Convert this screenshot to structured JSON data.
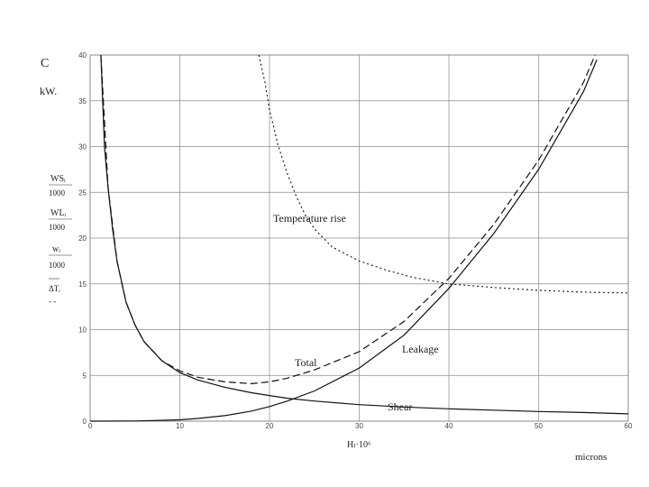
{
  "chart_data": {
    "type": "line",
    "xlim": [
      0,
      60
    ],
    "ylim": [
      0,
      40
    ],
    "x_ticks": [
      "0",
      "10",
      "20",
      "30",
      "40",
      "50",
      "60"
    ],
    "y_ticks": [
      "0",
      "5",
      "10",
      "15",
      "20",
      "25",
      "30",
      "35",
      "40"
    ],
    "grid": true,
    "xlabel": "Hₗ·10⁶",
    "x_unit": "microns",
    "y_unit_top": "C",
    "y_unit": "kW.",
    "ylabel_terms": [
      {
        "num": "WSᵢ",
        "den": "1000"
      },
      {
        "num": "WLᵢ",
        "den": "1000"
      },
      {
        "num": "wᵢ",
        "den": "1000"
      },
      {
        "num": "ΔTᵢ",
        "den": "- -"
      }
    ],
    "series": [
      {
        "name": "Shear",
        "style": "solid",
        "x": [
          1.2,
          1.6,
          2,
          2.5,
          3,
          4,
          5,
          6,
          8,
          10,
          12,
          15,
          18,
          20,
          22,
          25,
          30,
          35,
          40,
          45,
          50,
          55,
          60
        ],
        "y": [
          40,
          30,
          25.5,
          21,
          17.5,
          13,
          10.5,
          8.7,
          6.6,
          5.3,
          4.5,
          3.7,
          3.1,
          2.8,
          2.5,
          2.2,
          1.8,
          1.55,
          1.35,
          1.2,
          1.05,
          0.95,
          0.8
        ]
      },
      {
        "name": "Leakage",
        "style": "solid",
        "x": [
          0,
          5,
          10,
          12,
          15,
          18,
          20,
          22,
          25,
          30,
          35,
          40,
          45,
          50,
          55,
          56.5
        ],
        "y": [
          0,
          0.02,
          0.15,
          0.3,
          0.6,
          1.1,
          1.6,
          2.2,
          3.3,
          5.8,
          9.4,
          14.5,
          20.5,
          27.5,
          36,
          39.5
        ]
      },
      {
        "name": "Total",
        "style": "dashed",
        "x": [
          1.2,
          2,
          3,
          4,
          5,
          6,
          8,
          10,
          12,
          15,
          18,
          20,
          22,
          25,
          30,
          35,
          40,
          45,
          50,
          55,
          56.3
        ],
        "y": [
          40,
          25.5,
          17.5,
          13,
          10.5,
          8.7,
          6.6,
          5.5,
          4.8,
          4.3,
          4.1,
          4.3,
          4.7,
          5.6,
          7.6,
          10.9,
          15.6,
          21.5,
          28.5,
          37,
          40
        ]
      },
      {
        "name": "Temperature rise",
        "style": "dotted",
        "x": [
          18.8,
          19.5,
          20,
          21,
          22,
          23,
          24,
          25,
          27,
          30,
          33,
          36,
          40,
          45,
          50,
          55,
          60
        ],
        "y": [
          40,
          37,
          34,
          30,
          27,
          24.5,
          22.5,
          21,
          19,
          17.5,
          16.5,
          15.7,
          15,
          14.6,
          14.3,
          14.1,
          14
        ]
      }
    ]
  }
}
